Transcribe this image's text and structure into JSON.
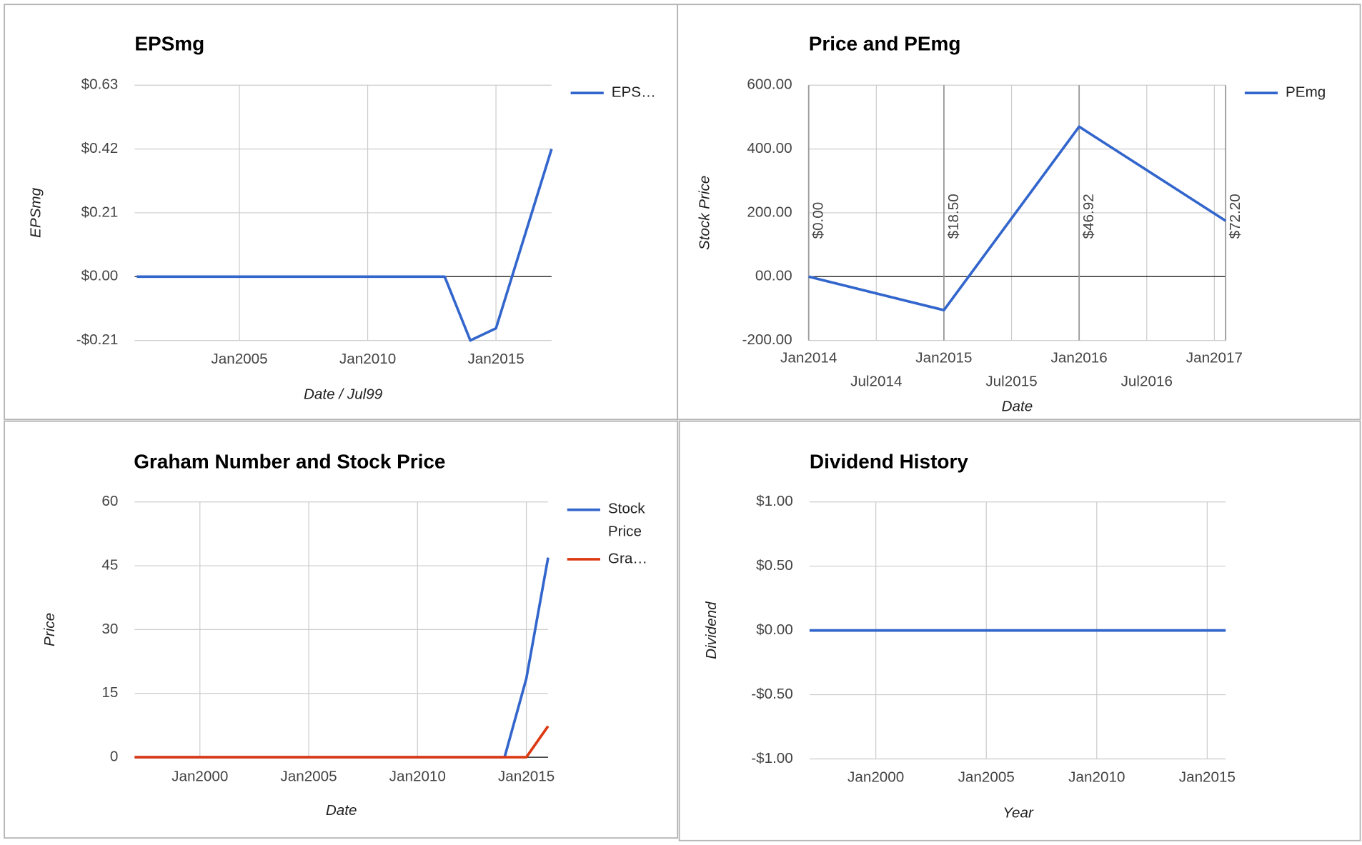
{
  "chart_data": [
    {
      "type": "line",
      "title": "EPSmg",
      "y_label": "EPSmg",
      "x_label": "Date / Jul99",
      "x": [
        "2001-01",
        "2013-01",
        "2014-01",
        "2015-01",
        "2017-03"
      ],
      "series": [
        {
          "name": "EPS…",
          "color": "#3366cc",
          "values": [
            0,
            0,
            -0.21,
            -0.17,
            0.42
          ]
        }
      ],
      "xlim": [
        "2000-12",
        "2017-03"
      ],
      "ylim": [
        -0.21,
        0.63
      ],
      "xticks": [
        {
          "value": "2005-01",
          "label": "Jan2005"
        },
        {
          "value": "2010-01",
          "label": "Jan2010"
        },
        {
          "value": "2015-01",
          "label": "Jan2015"
        }
      ],
      "yticks": [
        {
          "value": 0.63,
          "label": "$0.63"
        },
        {
          "value": 0.42,
          "label": "$0.42"
        },
        {
          "value": 0.21,
          "label": "$0.21"
        },
        {
          "value": 0,
          "label": "$0.00"
        },
        {
          "value": -0.21,
          "label": "-$0.21"
        }
      ],
      "grid": true,
      "legend": "right"
    },
    {
      "type": "line",
      "title": "Price and PEmg",
      "y_label": "Stock Price",
      "x_label": "Date",
      "x": [
        "2014-01",
        "2015-01",
        "2016-01",
        "2017-02"
      ],
      "series": [
        {
          "name": "PEmg",
          "color": "#3366cc",
          "values": [
            0,
            -105,
            470,
            175
          ]
        }
      ],
      "annotations": [
        "$0.00",
        "$18.50",
        "$46.92",
        "$72.20"
      ],
      "xlim": [
        "2014-01",
        "2017-02"
      ],
      "ylim": [
        -200,
        600
      ],
      "xticks": [
        {
          "value": "2014-01",
          "label": "Jan2014"
        },
        {
          "value": "2014-07",
          "label": "Jul2014"
        },
        {
          "value": "2015-01",
          "label": "Jan2015"
        },
        {
          "value": "2015-07",
          "label": "Jul2015"
        },
        {
          "value": "2016-01",
          "label": "Jan2016"
        },
        {
          "value": "2016-07",
          "label": "Jul2016"
        },
        {
          "value": "2017-01",
          "label": "Jan2017"
        }
      ],
      "yticks": [
        {
          "value": 600,
          "label": "600.00"
        },
        {
          "value": 400,
          "label": "400.00"
        },
        {
          "value": 200,
          "label": "200.00"
        },
        {
          "value": 0,
          "label": "00.00"
        },
        {
          "value": -200,
          "label": "-200.00"
        }
      ],
      "grid": true,
      "legend": "right"
    },
    {
      "type": "line",
      "title": "Graham Number and Stock Price",
      "y_label": "Price",
      "x_label": "Date",
      "x": [
        "1997-01",
        "2014-01",
        "2015-01",
        "2016-01"
      ],
      "series": [
        {
          "name": "Stock Price",
          "color": "#3366cc",
          "values": [
            0,
            0,
            18.5,
            46.92
          ]
        },
        {
          "name": "Gra…",
          "color": "#dc3912",
          "values": [
            0,
            0,
            0,
            7.3
          ]
        }
      ],
      "xlim": [
        "1997-01",
        "2016-01"
      ],
      "ylim": [
        0,
        60
      ],
      "xticks": [
        {
          "value": "2000-01",
          "label": "Jan2000"
        },
        {
          "value": "2005-01",
          "label": "Jan2005"
        },
        {
          "value": "2010-01",
          "label": "Jan2010"
        },
        {
          "value": "2015-01",
          "label": "Jan2015"
        }
      ],
      "yticks": [
        60,
        45,
        30,
        15,
        0
      ],
      "grid": true,
      "legend": "right"
    },
    {
      "type": "line",
      "title": "Dividend History",
      "y_label": "Dividend",
      "x_label": "Year",
      "x": [
        "1997-01",
        "2015-11"
      ],
      "series": [
        {
          "color": "#3366cc",
          "values": [
            0,
            0
          ]
        }
      ],
      "xlim": [
        "1997-01",
        "2015-11"
      ],
      "ylim": [
        -1,
        1
      ],
      "xticks": [
        {
          "value": "2000-01",
          "label": "Jan2000"
        },
        {
          "value": "2005-01",
          "label": "Jan2005"
        },
        {
          "value": "2010-01",
          "label": "Jan2010"
        },
        {
          "value": "2015-01",
          "label": "Jan2015"
        }
      ],
      "yticks": [
        {
          "value": 1,
          "label": "$1.00"
        },
        {
          "value": 0.5,
          "label": "$0.50"
        },
        {
          "value": 0,
          "label": "$0.00"
        },
        {
          "value": -0.5,
          "label": "-$0.50"
        },
        {
          "value": -1,
          "label": "-$1.00"
        }
      ],
      "grid": true
    }
  ]
}
